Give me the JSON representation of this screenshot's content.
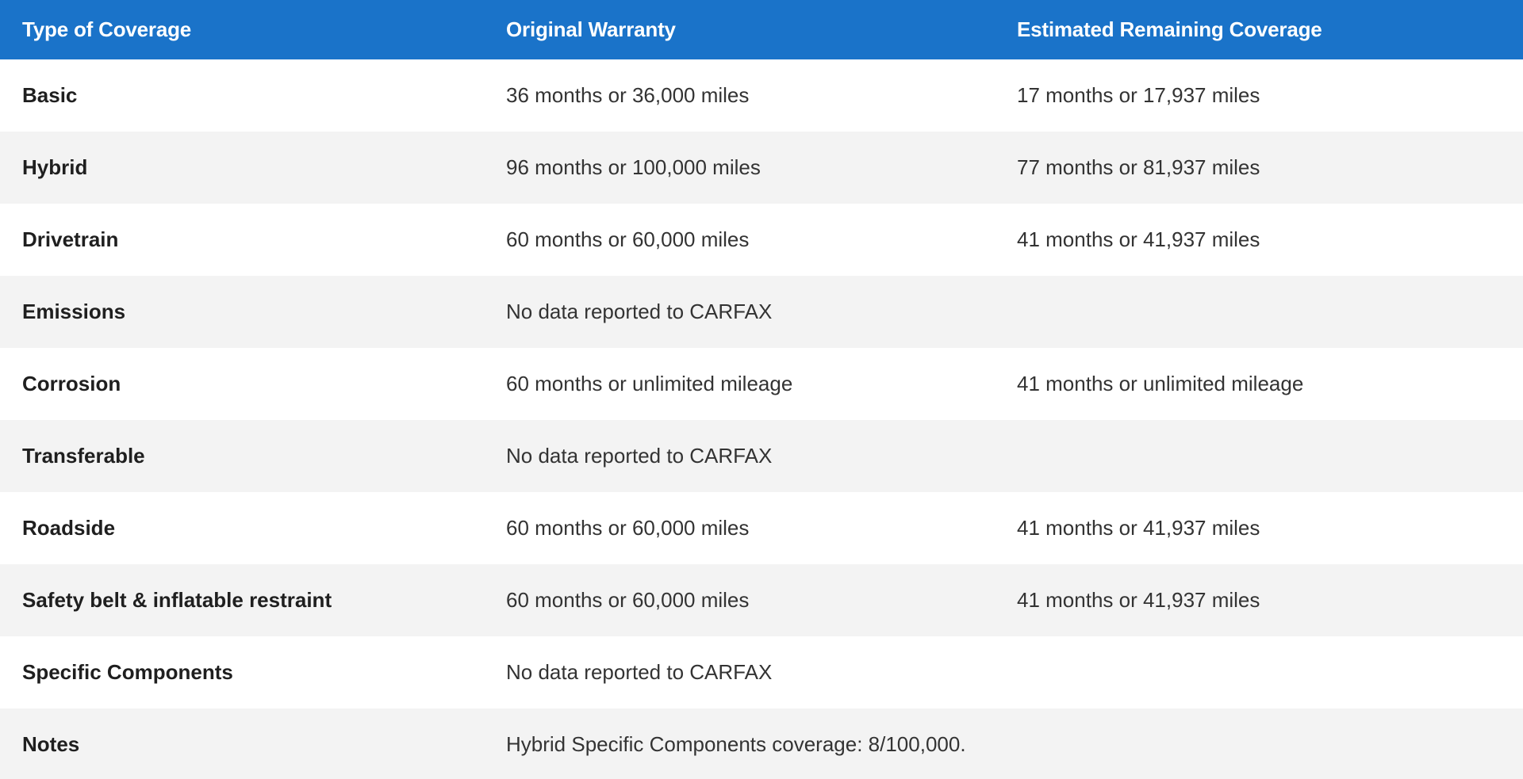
{
  "table": {
    "headers": {
      "type": "Type of Coverage",
      "original": "Original Warranty",
      "remaining": "Estimated Remaining Coverage"
    },
    "rows": [
      {
        "type": "Basic",
        "original": "36 months or 36,000 miles",
        "remaining": "17 months or 17,937 miles"
      },
      {
        "type": "Hybrid",
        "original": "96 months or 100,000 miles",
        "remaining": "77 months or 81,937 miles"
      },
      {
        "type": "Drivetrain",
        "original": "60 months or 60,000 miles",
        "remaining": "41 months or 41,937 miles"
      },
      {
        "type": "Emissions",
        "original": "No data reported to CARFAX",
        "remaining": ""
      },
      {
        "type": "Corrosion",
        "original": "60 months or unlimited mileage",
        "remaining": "41 months or unlimited mileage"
      },
      {
        "type": "Transferable",
        "original": "No data reported to CARFAX",
        "remaining": ""
      },
      {
        "type": "Roadside",
        "original": "60 months or 60,000 miles",
        "remaining": "41 months or 41,937 miles"
      },
      {
        "type": "Safety belt & inflatable restraint",
        "original": "60 months or 60,000 miles",
        "remaining": "41 months or 41,937 miles"
      },
      {
        "type": "Specific Components",
        "original": "No data reported to CARFAX",
        "remaining": ""
      },
      {
        "type": "Notes",
        "original": "Hybrid Specific Components coverage: 8/100,000.",
        "remaining": ""
      }
    ]
  },
  "colors": {
    "header_bg": "#1a73c9",
    "header_text": "#ffffff",
    "row_shade": "#f3f3f3",
    "row_plain": "#ffffff"
  }
}
